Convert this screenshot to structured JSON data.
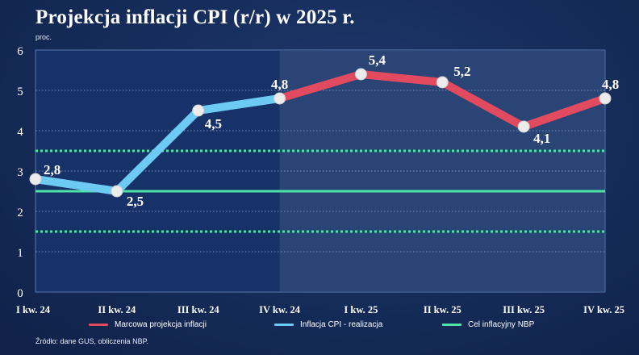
{
  "chart_data": {
    "type": "line",
    "title": "Projekcja inflacji CPI (r/r) w 2025 r.",
    "ylabel": "proc.",
    "ylim": [
      0,
      6
    ],
    "yticks": [
      "0",
      "1",
      "2",
      "3",
      "4",
      "5",
      "6"
    ],
    "categories": [
      "I kw. 24",
      "II kw. 24",
      "III kw. 24",
      "IV kw. 24",
      "I kw. 25",
      "II kw. 25",
      "III kw. 25",
      "IV kw. 25"
    ],
    "series": [
      {
        "name": "Inflacja CPI - realizacja",
        "color": "#6ccaf3",
        "values": [
          2.8,
          2.5,
          4.5,
          4.8,
          null,
          null,
          null,
          null
        ],
        "labels": [
          "2,8",
          "2,5",
          "4,5",
          "",
          "",
          "",
          "",
          ""
        ]
      },
      {
        "name": "Marcowa projekcja inflacji",
        "color": "#e14a5f",
        "values": [
          null,
          null,
          null,
          4.8,
          5.4,
          5.2,
          4.1,
          4.8
        ],
        "labels": [
          "",
          "",
          "",
          "4,8",
          "5,4",
          "5,2",
          "4,1",
          "4,8"
        ]
      }
    ],
    "reference_lines": [
      {
        "name": "Cel inflacyjny NBP",
        "value": 2.5,
        "style": "solid",
        "color": "#4fe3a8"
      },
      {
        "value": 3.5,
        "style": "dotted",
        "color": "#4fe3a8"
      },
      {
        "value": 1.5,
        "style": "dotted",
        "color": "#4fe3a8"
      }
    ],
    "shaded_region": {
      "from": "IV kw. 24",
      "to": "IV kw. 25"
    },
    "grid": "horizontal dotted",
    "legend_position": "bottom"
  },
  "legend": [
    {
      "label": "Marcowa projekcja inflacji",
      "color": "#e14a5f"
    },
    {
      "label": "Inflacja CPI - realizacja",
      "color": "#6ccaf3"
    },
    {
      "label": "Cel inflacyjny NBP",
      "color": "#4fe3a8"
    }
  ],
  "source": "Źródło: dane GUS, obliczenia NBP."
}
